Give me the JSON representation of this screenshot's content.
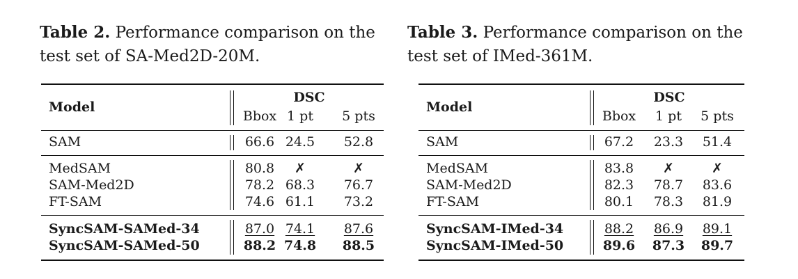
{
  "tables": [
    {
      "label": "Table 2.",
      "caption_line1": "Performance comparison on the",
      "caption_line2": "test set of SA-Med2D-20M.",
      "model_header": "Model",
      "metric_header": "DSC",
      "columns": [
        "Bbox",
        "1 pt",
        "5 pts"
      ],
      "rows": [
        {
          "model": "SAM",
          "values": [
            "66.6",
            "24.5",
            "52.8"
          ]
        },
        {
          "model": "MedSAM",
          "values": [
            "80.8",
            "✗",
            "✗"
          ]
        },
        {
          "model": "SAM-Med2D",
          "values": [
            "78.2",
            "68.3",
            "76.7"
          ]
        },
        {
          "model": "FT-SAM",
          "values": [
            "74.6",
            "61.1",
            "73.2"
          ]
        },
        {
          "model": "SyncSAM-SAMed-34",
          "values": [
            "87.0",
            "74.1",
            "87.6"
          ],
          "style": "underline"
        },
        {
          "model": "SyncSAM-SAMed-50",
          "values": [
            "88.2",
            "74.8",
            "88.5"
          ],
          "style": "bold"
        }
      ]
    },
    {
      "label": "Table 3.",
      "caption_line1": "Performance comparison on the",
      "caption_line2": "test set of IMed-361M.",
      "model_header": "Model",
      "metric_header": "DSC",
      "columns": [
        "Bbox",
        "1 pt",
        "5 pts"
      ],
      "rows": [
        {
          "model": "SAM",
          "values": [
            "67.2",
            "23.3",
            "51.4"
          ]
        },
        {
          "model": "MedSAM",
          "values": [
            "83.8",
            "✗",
            "✗"
          ]
        },
        {
          "model": "SAM-Med2D",
          "values": [
            "82.3",
            "78.7",
            "83.6"
          ]
        },
        {
          "model": "FT-SAM",
          "values": [
            "80.1",
            "78.3",
            "81.9"
          ]
        },
        {
          "model": "SyncSAM-IMed-34",
          "values": [
            "88.2",
            "86.9",
            "89.1"
          ],
          "style": "underline"
        },
        {
          "model": "SyncSAM-IMed-50",
          "values": [
            "89.6",
            "87.3",
            "89.7"
          ],
          "style": "bold"
        }
      ]
    }
  ]
}
